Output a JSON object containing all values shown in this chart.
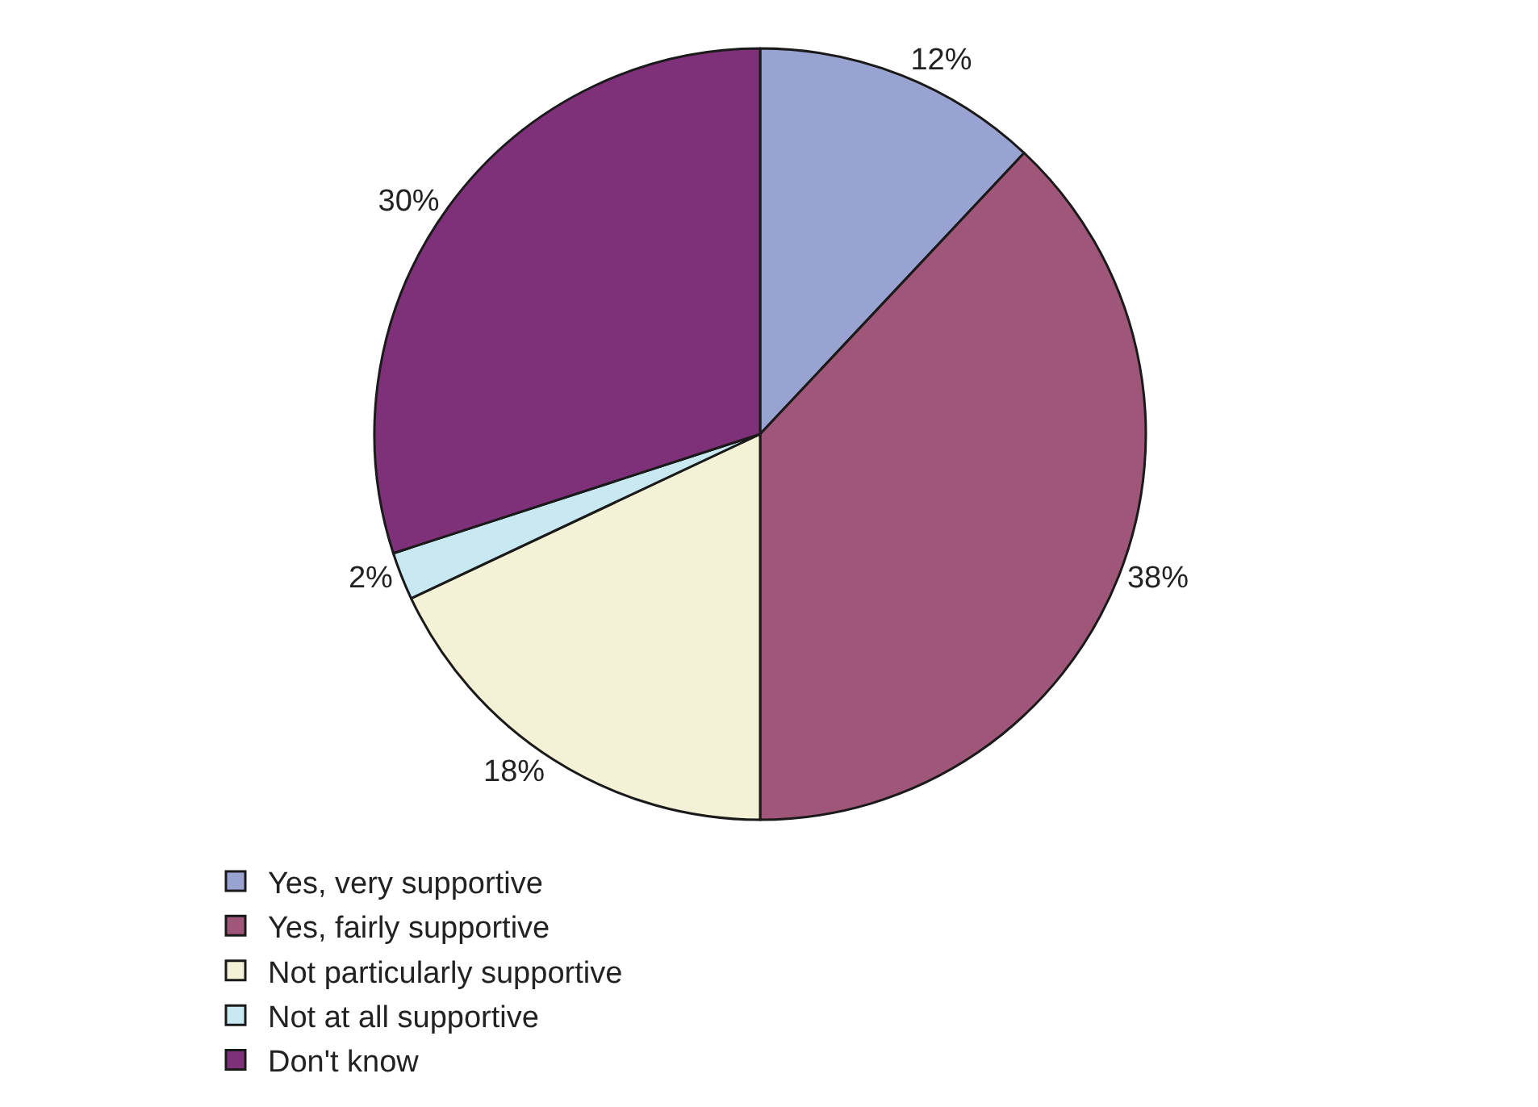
{
  "chart_data": {
    "type": "pie",
    "categories": [
      "Yes, very supportive",
      "Yes, fairly supportive",
      "Not particularly supportive",
      "Not at all supportive",
      "Don't know"
    ],
    "values": [
      12,
      38,
      18,
      2,
      30
    ],
    "value_labels": [
      "12%",
      "38%",
      "18%",
      "2%",
      "30%"
    ],
    "colors": [
      "#99a3d2",
      "#a05678",
      "#f3f2d6",
      "#c9e9f2",
      "#7e3078"
    ],
    "legend": "bottom"
  }
}
